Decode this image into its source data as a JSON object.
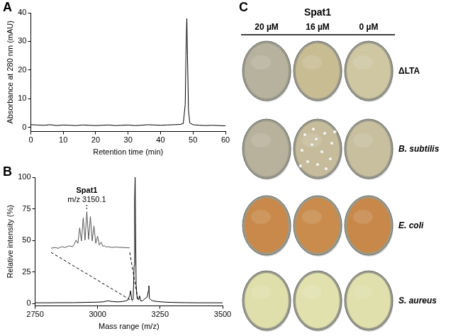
{
  "chart_data": [
    {
      "panel": "A",
      "type": "line",
      "x": [
        0,
        2,
        4,
        6,
        8,
        10,
        12,
        14,
        16,
        18,
        20,
        22,
        24,
        26,
        28,
        30,
        32,
        34,
        36,
        38,
        40,
        42,
        44,
        46,
        47,
        47.6,
        47.9,
        48.1,
        48.3,
        48.6,
        49,
        50,
        52,
        54,
        56,
        58,
        60
      ],
      "values": [
        0.9,
        0.8,
        0.7,
        0.9,
        0.6,
        0.8,
        0.7,
        0.6,
        0.8,
        0.7,
        0.6,
        0.7,
        0.8,
        0.6,
        0.7,
        0.8,
        0.6,
        0.7,
        0.9,
        0.8,
        0.7,
        0.8,
        0.9,
        1.0,
        1.3,
        8,
        30,
        38,
        25,
        6,
        1.5,
        0.9,
        0.7,
        0.6,
        0.7,
        0.6,
        0.5
      ],
      "color": "#000000",
      "x_label": "Retention time (min)",
      "y_label": "Absorbance at 280 nm (mAU)",
      "xlim": [
        0,
        60
      ],
      "xticks": [
        0,
        10,
        20,
        30,
        40,
        50,
        60
      ],
      "ylim": [
        -1.5,
        40
      ],
      "yticks": [
        0,
        10,
        20,
        30,
        40
      ],
      "grid": false
    },
    {
      "panel": "B",
      "type": "line",
      "x": [
        2750,
        2800,
        2850,
        2900,
        2950,
        3000,
        3020,
        3040,
        3060,
        3080,
        3100,
        3110,
        3120,
        3128,
        3132,
        3136,
        3142,
        3146,
        3148,
        3150,
        3152,
        3154,
        3158,
        3164,
        3168,
        3172,
        3180,
        3190,
        3198,
        3203,
        3205,
        3207,
        3212,
        3220,
        3240,
        3270,
        3300,
        3350,
        3400,
        3450,
        3500
      ],
      "values": [
        0.5,
        0.5,
        0.6,
        0.6,
        0.8,
        1,
        1.2,
        2,
        1.5,
        1.2,
        1.5,
        2,
        2.5,
        6,
        10,
        3,
        3,
        30,
        80,
        100,
        55,
        15,
        4,
        3,
        6,
        2,
        2,
        4,
        5,
        10,
        14,
        4,
        3,
        2,
        1.5,
        1,
        0.8,
        0.6,
        0.5,
        0.5,
        0.5
      ],
      "color": "#000000",
      "x_label": "Mass range (m/z)",
      "y_label": "Relative intensity (%)",
      "xlim": [
        2750,
        3500
      ],
      "xticks": [
        2750,
        3000,
        3250,
        3500
      ],
      "ylim": [
        -2,
        100
      ],
      "yticks": [
        0,
        25,
        50,
        75,
        100
      ],
      "grid": false
    },
    {
      "type": "line",
      "x": [
        3140,
        3141,
        3142,
        3143,
        3144,
        3145,
        3146,
        3146.5,
        3147,
        3147.5,
        3148,
        3148.5,
        3149,
        3149.5,
        3150,
        3150.5,
        3151,
        3151.5,
        3152,
        3152.5,
        3153,
        3153.5,
        3154,
        3154.5,
        3155,
        3155.5,
        3156,
        3157,
        3158,
        3160,
        3162
      ],
      "values": [
        10,
        12,
        10,
        14,
        12,
        16,
        14,
        20,
        30,
        22,
        60,
        28,
        85,
        30,
        100,
        32,
        88,
        28,
        65,
        22,
        40,
        18,
        25,
        15,
        16,
        13,
        14,
        12,
        13,
        12,
        11
      ],
      "color": "#555555",
      "annotations": [
        "Spat1",
        "m/z 3150.1"
      ],
      "xlim": [
        3140,
        3162
      ],
      "ylim": [
        0,
        115
      ],
      "tick_labels": false,
      "grid": false
    }
  ],
  "panel_c": {
    "letter": "C",
    "title": "Spat1",
    "columns": [
      "20 µM",
      "16 µM",
      "0 µM"
    ],
    "rows": [
      {
        "label": "ΔLTA",
        "style": "normal"
      },
      {
        "label": "B. subtilis",
        "style": "italic"
      },
      {
        "label": "E. coli",
        "style": "italic"
      },
      {
        "label": "S. aureus",
        "style": "italic"
      }
    ]
  }
}
